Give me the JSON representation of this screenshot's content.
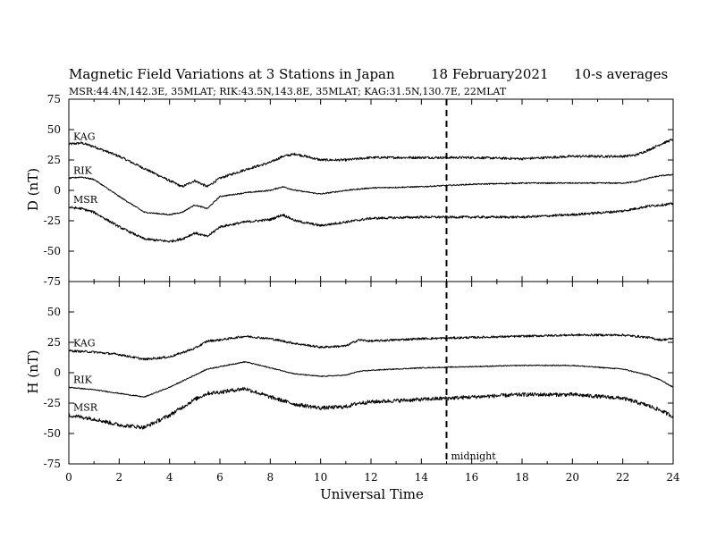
{
  "header": {
    "title": "Magnetic Field Variations at 3 Stations in Japan",
    "date": "18 February2021",
    "averaging": "10-s averages",
    "stations_line": "MSR:44.4N,142.3E, 35MLAT;  RIK:43.5N,143.8E, 35MLAT;  KAG:31.5N,130.7E, 22MLAT"
  },
  "chart_data": [
    {
      "type": "line",
      "ylabel": "D (nT)",
      "ylim": [
        -75,
        75
      ],
      "yticks": [
        -75,
        -50,
        -25,
        0,
        25,
        50,
        75
      ],
      "xlim": [
        0,
        24
      ],
      "xticks": [
        0,
        2,
        4,
        6,
        8,
        10,
        12,
        14,
        16,
        18,
        20,
        22,
        24
      ],
      "series": [
        {
          "name": "KAG",
          "noise": 1.0,
          "x": [
            0,
            0.5,
            1,
            2,
            3,
            4,
            4.5,
            5,
            5.5,
            6,
            7,
            8,
            8.5,
            9,
            10,
            11,
            12,
            14,
            15,
            16,
            18,
            20,
            22,
            22.5,
            23,
            23.5,
            24
          ],
          "y": [
            38,
            39,
            36,
            28,
            18,
            8,
            3,
            8,
            3,
            10,
            17,
            23,
            28,
            30,
            25,
            25,
            27,
            27,
            27,
            27,
            26,
            28,
            28,
            29,
            33,
            38,
            42
          ]
        },
        {
          "name": "RIK",
          "noise": 0.5,
          "x": [
            0,
            0.5,
            1,
            2,
            3,
            4,
            4.5,
            5,
            5.5,
            6,
            7,
            8,
            8.5,
            9,
            10,
            11,
            12,
            14,
            15,
            16,
            18,
            20,
            22,
            22.5,
            23,
            23.5,
            24
          ],
          "y": [
            10,
            11,
            9,
            -5,
            -18,
            -20,
            -18,
            -12,
            -15,
            -5,
            -2,
            0,
            3,
            0,
            -3,
            0,
            2,
            3,
            4,
            5,
            6,
            6,
            6,
            7,
            10,
            12,
            13
          ]
        },
        {
          "name": "MSR",
          "noise": 1.0,
          "x": [
            0,
            0.5,
            1,
            2,
            3,
            4,
            4.5,
            5,
            5.5,
            6,
            7,
            8,
            8.5,
            9,
            10,
            11,
            12,
            14,
            15,
            16,
            18,
            20,
            22,
            22.5,
            23,
            23.5,
            24
          ],
          "y": [
            -14,
            -15,
            -18,
            -30,
            -40,
            -42,
            -40,
            -35,
            -38,
            -30,
            -26,
            -24,
            -20,
            -25,
            -29,
            -26,
            -23,
            -22,
            -22,
            -22,
            -22,
            -20,
            -17,
            -15,
            -13,
            -12,
            -11
          ]
        }
      ]
    },
    {
      "type": "line",
      "ylabel": "H (nT)",
      "ylim": [
        -75,
        75
      ],
      "yticks": [
        -75,
        -50,
        -25,
        0,
        25,
        50,
        75
      ],
      "xlim": [
        0,
        24
      ],
      "xticks": [
        0,
        2,
        4,
        6,
        8,
        10,
        12,
        14,
        16,
        18,
        20,
        22,
        24
      ],
      "series": [
        {
          "name": "KAG",
          "noise": 0.9,
          "x": [
            0,
            1,
            2,
            3,
            4,
            5,
            5.5,
            6,
            7,
            8,
            9,
            10,
            11,
            11.5,
            12,
            14,
            16,
            18,
            20,
            22,
            23,
            23.5,
            24
          ],
          "y": [
            18,
            17,
            15,
            11,
            13,
            20,
            26,
            27,
            30,
            28,
            24,
            21,
            22,
            27,
            26,
            28,
            29,
            30,
            31,
            31,
            29,
            27,
            28
          ]
        },
        {
          "name": "RIK",
          "noise": 0.4,
          "x": [
            0,
            1,
            2,
            3,
            4,
            5,
            5.5,
            6,
            7,
            8,
            9,
            10,
            11,
            11.5,
            12,
            14,
            16,
            18,
            20,
            22,
            23,
            23.5,
            24
          ],
          "y": [
            -12,
            -14,
            -17,
            -20,
            -12,
            -2,
            3,
            5,
            9,
            4,
            -1,
            -3,
            -2,
            1,
            2,
            4,
            5,
            6,
            6,
            3,
            -2,
            -6,
            -12
          ]
        },
        {
          "name": "MSR",
          "noise": 1.6,
          "x": [
            0,
            1,
            2,
            3,
            4,
            5,
            5.5,
            6,
            7,
            8,
            9,
            10,
            11,
            11.5,
            12,
            14,
            15,
            16,
            18,
            20,
            22,
            23,
            23.5,
            24
          ],
          "y": [
            -35,
            -38,
            -43,
            -45,
            -35,
            -22,
            -17,
            -16,
            -13,
            -20,
            -26,
            -29,
            -28,
            -25,
            -24,
            -22,
            -21,
            -20,
            -18,
            -18,
            -21,
            -27,
            -31,
            -36
          ]
        }
      ]
    }
  ],
  "xlabel": "Universal Time",
  "midnight": {
    "label": "midnight",
    "x": 15
  },
  "colors": {
    "trace": "#000000",
    "background": "#ffffff"
  }
}
